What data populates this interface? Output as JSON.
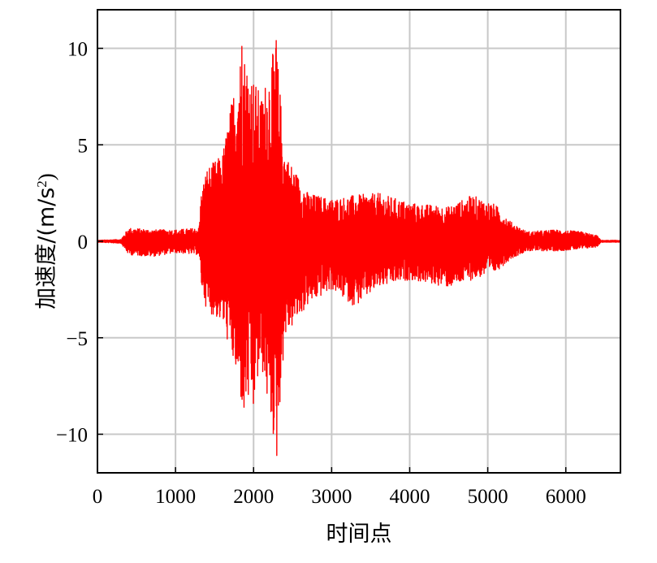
{
  "chart_data": {
    "type": "line",
    "xlabel": "时间点",
    "ylabel": "加速度/(m/s²)",
    "ylabel_parts": {
      "main": "加速度/(m/s",
      "sup": "2",
      "tail": ")"
    },
    "xlim": [
      0,
      6700
    ],
    "ylim": [
      -12,
      12
    ],
    "xticks": [
      0,
      1000,
      2000,
      3000,
      4000,
      5000,
      6000
    ],
    "yticks": [
      10,
      5,
      0,
      -5,
      -10
    ],
    "ytick_labels": [
      "10",
      "5",
      "0",
      "−5",
      "−10"
    ],
    "grid": true,
    "series": [
      {
        "color": "#ff0000",
        "x_start": 0,
        "x_end": 6700,
        "peaks": [
          {
            "x": 1850,
            "y": 10.1
          },
          {
            "x": 2290,
            "y": 10.4
          },
          {
            "x": 2300,
            "y": -11.1
          },
          {
            "x": 1880,
            "y": -8.6
          },
          {
            "x": 2000,
            "y": -8.4
          }
        ],
        "envelope_points": [
          {
            "x": 0,
            "pos": 0.05,
            "neg": -0.05
          },
          {
            "x": 300,
            "pos": 0.1,
            "neg": -0.1
          },
          {
            "x": 400,
            "pos": 0.7,
            "neg": -0.7
          },
          {
            "x": 700,
            "pos": 0.6,
            "neg": -0.8
          },
          {
            "x": 1000,
            "pos": 0.6,
            "neg": -0.6
          },
          {
            "x": 1300,
            "pos": 0.7,
            "neg": -0.7
          },
          {
            "x": 1330,
            "pos": 2.6,
            "neg": -2.3
          },
          {
            "x": 1400,
            "pos": 3.8,
            "neg": -3.6
          },
          {
            "x": 1600,
            "pos": 4.5,
            "neg": -4.2
          },
          {
            "x": 1750,
            "pos": 8.0,
            "neg": -6.5
          },
          {
            "x": 1850,
            "pos": 10.1,
            "neg": -8.6
          },
          {
            "x": 2000,
            "pos": 8.5,
            "neg": -8.4
          },
          {
            "x": 2100,
            "pos": 7.5,
            "neg": -6.5
          },
          {
            "x": 2290,
            "pos": 10.4,
            "neg": -11.1
          },
          {
            "x": 2400,
            "pos": 4.6,
            "neg": -5.0
          },
          {
            "x": 2700,
            "pos": 2.5,
            "neg": -3.3
          },
          {
            "x": 3000,
            "pos": 2.2,
            "neg": -2.5
          },
          {
            "x": 3300,
            "pos": 2.4,
            "neg": -3.4
          },
          {
            "x": 3600,
            "pos": 2.5,
            "neg": -2.4
          },
          {
            "x": 4000,
            "pos": 2.0,
            "neg": -2.0
          },
          {
            "x": 4500,
            "pos": 1.8,
            "neg": -2.4
          },
          {
            "x": 4800,
            "pos": 2.4,
            "neg": -2.0
          },
          {
            "x": 5100,
            "pos": 1.9,
            "neg": -1.6
          },
          {
            "x": 5300,
            "pos": 1.0,
            "neg": -0.9
          },
          {
            "x": 5500,
            "pos": 0.5,
            "neg": -0.5
          },
          {
            "x": 5900,
            "pos": 0.6,
            "neg": -0.5
          },
          {
            "x": 6200,
            "pos": 0.5,
            "neg": -0.4
          },
          {
            "x": 6400,
            "pos": 0.3,
            "neg": -0.3
          },
          {
            "x": 6450,
            "pos": 0.05,
            "neg": -0.05
          },
          {
            "x": 6700,
            "pos": 0.05,
            "neg": -0.05
          }
        ]
      }
    ]
  }
}
